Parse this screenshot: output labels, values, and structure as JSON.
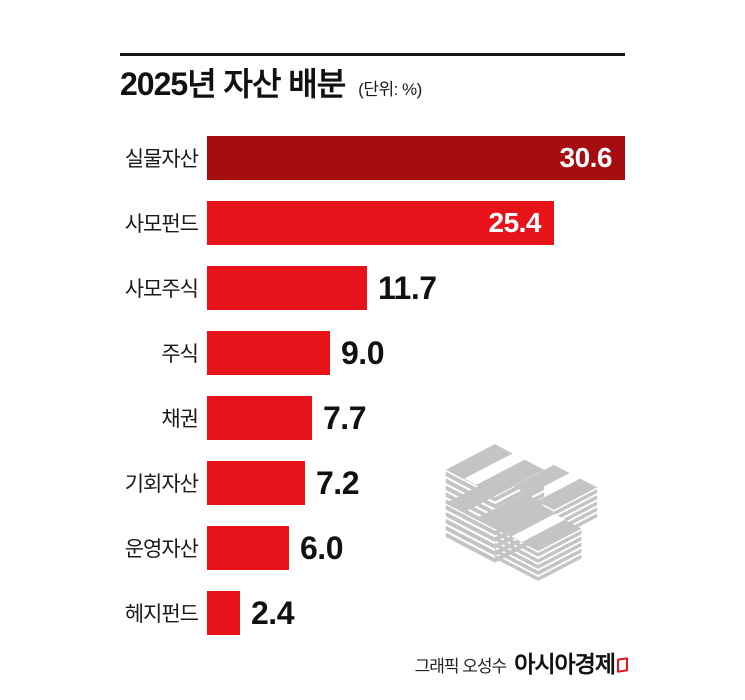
{
  "header": {
    "title": "2025년 자산 배분",
    "unit": "(단위: %)"
  },
  "chart_data": {
    "type": "bar",
    "orientation": "horizontal",
    "title": "2025년 자산 배분",
    "unit_label": "(단위: %)",
    "categories": [
      "실물자산",
      "사모펀드",
      "사모주식",
      "주식",
      "채권",
      "기회자산",
      "운영자산",
      "헤지펀드"
    ],
    "values": [
      30.6,
      25.4,
      11.7,
      9.0,
      7.7,
      7.2,
      6.0,
      2.4
    ],
    "value_labels": [
      "30.6",
      "25.4",
      "11.7",
      "9.0",
      "7.7",
      "7.2",
      "6.0",
      "2.4"
    ],
    "value_label_position": [
      "inside",
      "inside",
      "outside",
      "outside",
      "outside",
      "outside",
      "outside",
      "outside"
    ],
    "bar_colors": [
      "#a60d10",
      "#e8121a",
      "#e8121a",
      "#e8121a",
      "#e8121a",
      "#e8121a",
      "#e8121a",
      "#e8121a"
    ],
    "xlim": [
      0,
      31
    ],
    "grid": false,
    "legend": false
  },
  "colors": {
    "accent_dark_red": "#a60d10",
    "accent_red": "#e8121a",
    "icon_gray": "#c4c4c5",
    "text": "#111111"
  },
  "decoration": {
    "money_icon": "money-stacks-icon"
  },
  "footer": {
    "credit": "그래픽 오성수",
    "brand": "아시아경제"
  }
}
